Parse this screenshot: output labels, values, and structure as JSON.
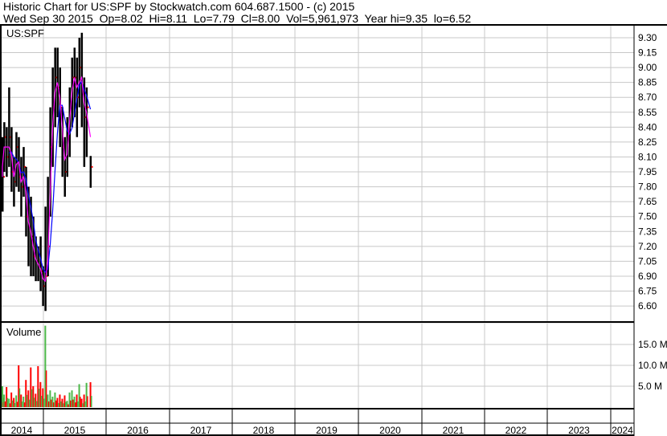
{
  "header": {
    "title": "Historic Chart for US:SPF by Stockwatch.com 604.687.1500 - (c) 2015",
    "quote_line": "Wed Sep 30 2015  Op=8.02  Hi=8.11  Lo=7.79  Cl=8.00  Vol=5,961,973  Year hi=9.35  lo=6.52"
  },
  "colors": {
    "price_bar": "#000000",
    "ma_short": "#ff00ff",
    "ma_long": "#0000ff",
    "close_tick": "#ff0000",
    "vol_up": "#4cb848",
    "vol_down": "#ff0000",
    "grid": "#c8c8c8"
  },
  "chart_data": [
    {
      "type": "line",
      "label": "US:SPF",
      "y_ticks": [
        "9.30",
        "9.15",
        "9.00",
        "8.85",
        "8.70",
        "8.55",
        "8.40",
        "8.25",
        "8.10",
        "7.95",
        "7.80",
        "7.65",
        "7.50",
        "7.35",
        "7.20",
        "7.05",
        "6.90",
        "6.75",
        "6.60"
      ],
      "ylim": [
        6.5,
        9.35
      ],
      "x_ticks": [
        "2014",
        "2015",
        "2016",
        "2017",
        "2018",
        "2019",
        "2020",
        "2021",
        "2022",
        "2023",
        "2024"
      ],
      "grid": true,
      "series": [
        {
          "date": "2014-04-21",
          "high": 8.2,
          "low": 7.55,
          "close": 7.9
        },
        {
          "date": "2014-05-05",
          "high": 8.3,
          "low": 7.8,
          "close": 8.1
        },
        {
          "date": "2014-05-19",
          "high": 8.45,
          "low": 7.95,
          "close": 8.3
        },
        {
          "date": "2014-06-02",
          "high": 8.4,
          "low": 7.9,
          "close": 8.1
        },
        {
          "date": "2014-06-16",
          "high": 8.8,
          "low": 8.0,
          "close": 8.3
        },
        {
          "date": "2014-06-30",
          "high": 8.4,
          "low": 7.75,
          "close": 7.95
        },
        {
          "date": "2014-07-14",
          "high": 8.1,
          "low": 7.6,
          "close": 7.85
        },
        {
          "date": "2014-07-28",
          "high": 8.35,
          "low": 7.8,
          "close": 8.2
        },
        {
          "date": "2014-08-11",
          "high": 8.3,
          "low": 7.75,
          "close": 7.9
        },
        {
          "date": "2014-08-25",
          "high": 8.1,
          "low": 7.5,
          "close": 7.8
        },
        {
          "date": "2014-09-08",
          "high": 8.2,
          "low": 7.7,
          "close": 8.0
        },
        {
          "date": "2014-09-22",
          "high": 8.0,
          "low": 7.3,
          "close": 7.5
        },
        {
          "date": "2014-10-06",
          "high": 7.8,
          "low": 7.0,
          "close": 7.4
        },
        {
          "date": "2014-10-20",
          "high": 7.7,
          "low": 6.9,
          "close": 7.3
        },
        {
          "date": "2014-11-03",
          "high": 7.5,
          "low": 6.9,
          "close": 7.1
        },
        {
          "date": "2014-11-17",
          "high": 7.3,
          "low": 6.85,
          "close": 7.05
        },
        {
          "date": "2014-12-01",
          "high": 7.2,
          "low": 6.85,
          "close": 7.0
        },
        {
          "date": "2014-12-15",
          "high": 7.3,
          "low": 6.75,
          "close": 6.95
        },
        {
          "date": "2014-12-29",
          "high": 7.0,
          "low": 6.6,
          "close": 6.8
        },
        {
          "date": "2015-01-12",
          "high": 7.6,
          "low": 6.55,
          "close": 6.9
        },
        {
          "date": "2015-01-26",
          "high": 7.9,
          "low": 6.9,
          "close": 7.2
        },
        {
          "date": "2015-02-09",
          "high": 8.6,
          "low": 7.5,
          "close": 8.2
        },
        {
          "date": "2015-02-23",
          "high": 9.0,
          "low": 8.0,
          "close": 8.6
        },
        {
          "date": "2015-03-09",
          "high": 9.2,
          "low": 8.4,
          "close": 8.9
        },
        {
          "date": "2015-03-23",
          "high": 9.2,
          "low": 8.5,
          "close": 8.8
        },
        {
          "date": "2015-04-06",
          "high": 9.0,
          "low": 8.2,
          "close": 8.6
        },
        {
          "date": "2015-04-20",
          "high": 8.6,
          "low": 7.9,
          "close": 8.2
        },
        {
          "date": "2015-05-04",
          "high": 8.3,
          "low": 7.7,
          "close": 7.95
        },
        {
          "date": "2015-05-18",
          "high": 8.5,
          "low": 7.9,
          "close": 8.3
        },
        {
          "date": "2015-06-01",
          "high": 8.8,
          "low": 8.1,
          "close": 8.6
        },
        {
          "date": "2015-06-15",
          "high": 9.1,
          "low": 8.4,
          "close": 8.9
        },
        {
          "date": "2015-06-29",
          "high": 9.2,
          "low": 8.5,
          "close": 8.9
        },
        {
          "date": "2015-07-13",
          "high": 9.1,
          "low": 8.3,
          "close": 8.7
        },
        {
          "date": "2015-07-27",
          "high": 9.3,
          "low": 8.6,
          "close": 9.0
        },
        {
          "date": "2015-08-10",
          "high": 9.35,
          "low": 8.4,
          "close": 8.8
        },
        {
          "date": "2015-08-24",
          "high": 8.9,
          "low": 8.0,
          "close": 8.5
        },
        {
          "date": "2015-09-07",
          "high": 8.8,
          "low": 8.1,
          "close": 8.6
        },
        {
          "date": "2015-09-30",
          "high": 8.11,
          "low": 7.79,
          "close": 8.0
        }
      ]
    },
    {
      "type": "bar",
      "label": "Volume",
      "y_ticks": [
        "15.0 M",
        "10.0 M",
        "5.0 M"
      ],
      "ylim": [
        0,
        20
      ],
      "values_millions": [
        5.0,
        2.5,
        3.0,
        4.8,
        2.0,
        3.5,
        2.2,
        2.8,
        10.0,
        3.0,
        2.5,
        6.5,
        4.0,
        9.5,
        5.0,
        3.2,
        9.8,
        6.0,
        4.5,
        19.5,
        3.0,
        4.0,
        2.5,
        3.5,
        2.2,
        3.0,
        2.0,
        2.8,
        1.5,
        3.5,
        4.0,
        2.5,
        3.0,
        5.5,
        2.0,
        3.0,
        5.8,
        5.96
      ]
    }
  ]
}
